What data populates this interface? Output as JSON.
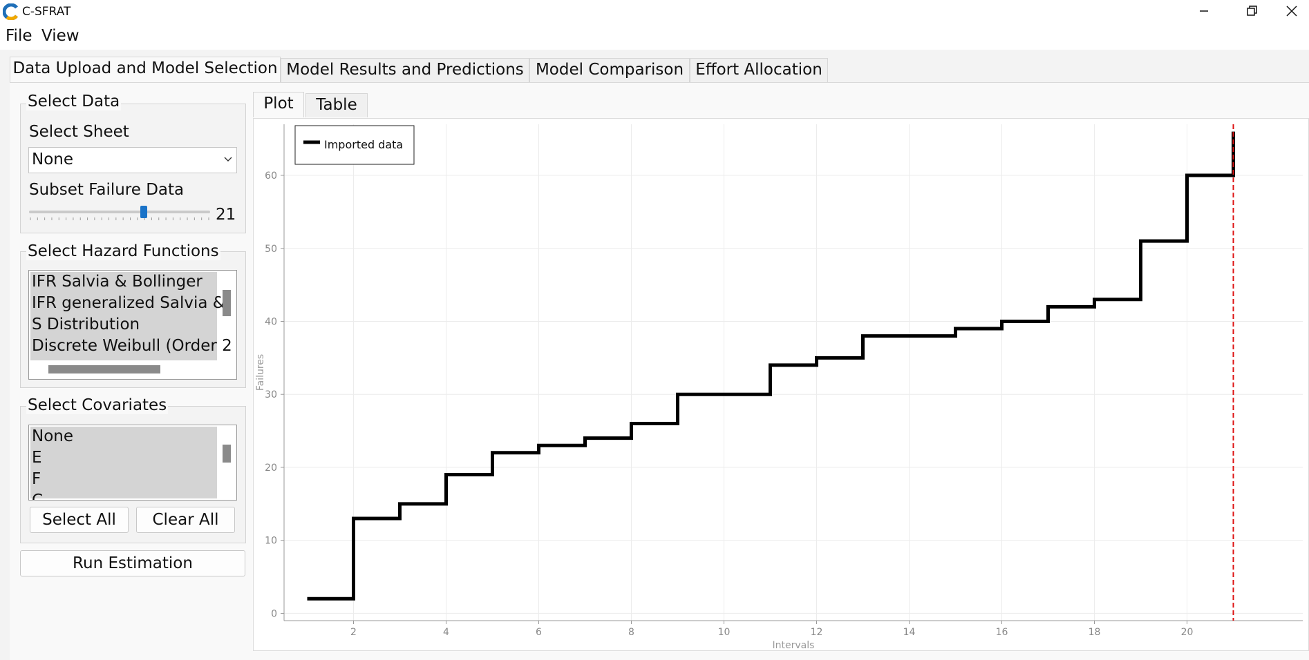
{
  "window": {
    "title": "C-SFRAT"
  },
  "menu": {
    "file": "File",
    "view": "View"
  },
  "tabs": [
    {
      "label": "Data Upload and Model Selection"
    },
    {
      "label": "Model Results and Predictions"
    },
    {
      "label": "Model Comparison"
    },
    {
      "label": "Effort Allocation"
    }
  ],
  "select_data": {
    "title": "Select Data",
    "sheet_label": "Select Sheet",
    "sheet_value": "None",
    "subset_label": "Subset Failure Data",
    "subset_value": "21",
    "slider_fraction": 0.64
  },
  "hazard": {
    "title": "Select Hazard Functions",
    "items": [
      "IFR Salvia & Bollinger",
      "IFR generalized Salvia &",
      "S Distribution",
      "Discrete Weibull (Order 2"
    ]
  },
  "covariates": {
    "title": "Select Covariates",
    "items": [
      "None",
      "E",
      "F",
      "C"
    ],
    "select_all": "Select All",
    "clear_all": "Clear All"
  },
  "run_button": "Run Estimation",
  "plot_tabs": {
    "plot": "Plot",
    "table": "Table"
  },
  "chart_data": {
    "type": "line",
    "xlabel": "Intervals",
    "ylabel": "Failures",
    "xlim": [
      0.5,
      22.5
    ],
    "ylim": [
      -1,
      67
    ],
    "xticks": [
      2,
      4,
      6,
      8,
      10,
      12,
      14,
      16,
      18,
      20
    ],
    "yticks": [
      0,
      10,
      20,
      30,
      40,
      50,
      60
    ],
    "grid": true,
    "legend": "top-left",
    "series": [
      {
        "name": "Imported data",
        "color": "#000000",
        "step": true,
        "x": [
          1,
          2,
          3,
          4,
          5,
          6,
          7,
          8,
          9,
          10,
          11,
          12,
          13,
          14,
          15,
          16,
          17,
          18,
          19,
          20,
          21
        ],
        "y": [
          2,
          13,
          15,
          19,
          22,
          23,
          24,
          26,
          30,
          30,
          34,
          35,
          38,
          38,
          39,
          40,
          42,
          43,
          51,
          60,
          66
        ]
      }
    ],
    "vline": {
      "x": 21,
      "color": "#dd1111",
      "style": "dashed"
    }
  }
}
